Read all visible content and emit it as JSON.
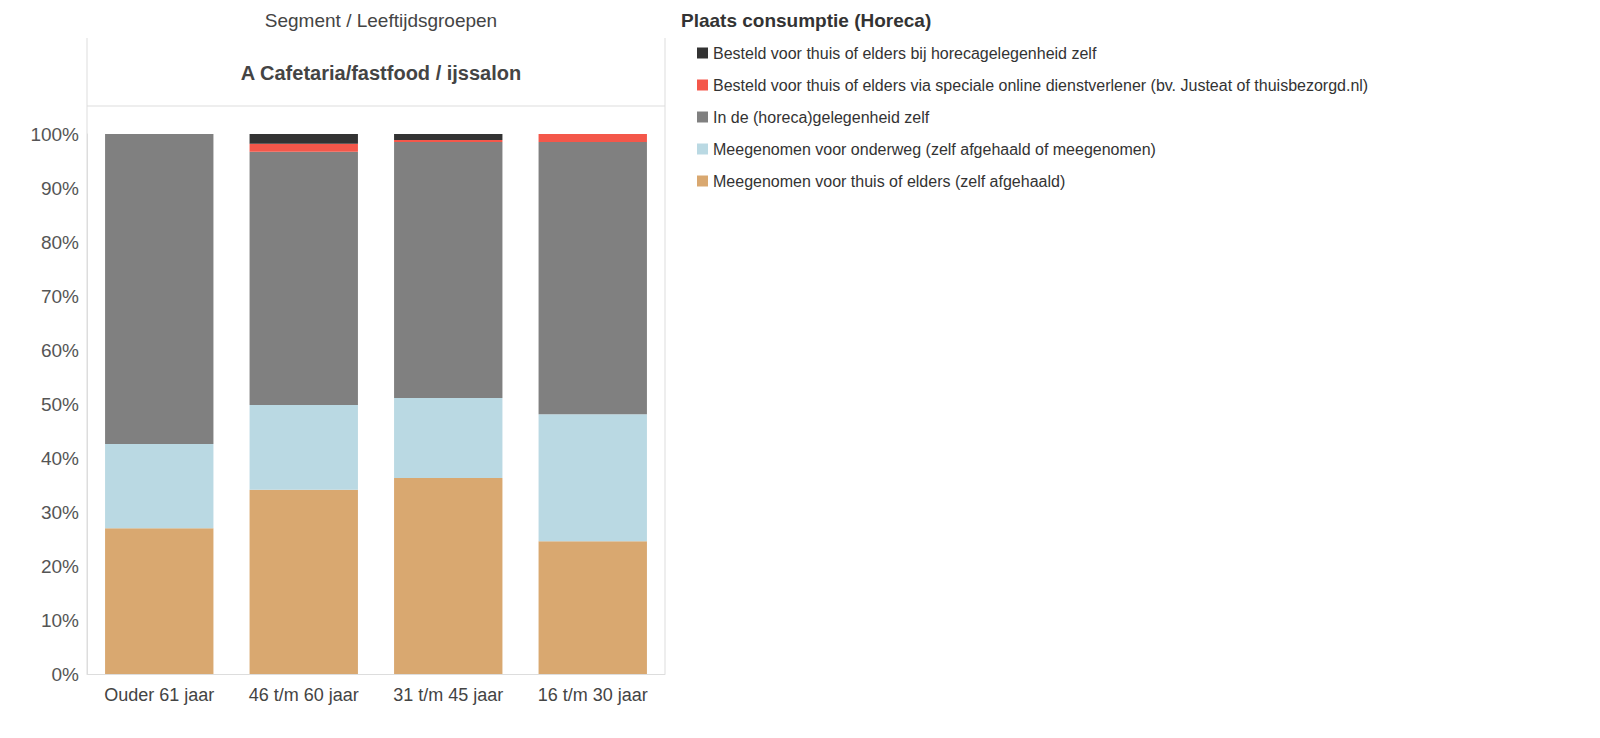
{
  "chart_data": {
    "type": "bar",
    "x_label": "Segment / Leeftijdsgroepen",
    "title": "A Cafetaria/fastfood / ijssalon",
    "legend_title": "Plaats consumptie (Horeca)",
    "categories": [
      "Ouder 61 jaar",
      "46 t/m 60 jaar",
      "31 t/m 45 jaar",
      "16 t/m 30 jaar"
    ],
    "series": [
      {
        "name": "Besteld voor thuis of elders bij horecagelegenheid zelf",
        "color": "#333333",
        "values": [
          0,
          1.8,
          1.1,
          0
        ]
      },
      {
        "name": "Besteld voor thuis of elders via speciale online dienstverlener (bv. Justeat of thuisbezorgd.nl)",
        "color": "#f4574a",
        "values": [
          0,
          1.5,
          0.4,
          1.5
        ]
      },
      {
        "name": "In de (horeca)gelegenheid zelf",
        "color": "#808080",
        "values": [
          57.4,
          46.9,
          47.4,
          50.4
        ]
      },
      {
        "name": "Meegenomen voor onderweg (zelf afgehaald of meegenomen)",
        "color": "#bad9e3",
        "values": [
          15.6,
          15.7,
          14.8,
          23.5
        ]
      },
      {
        "name": "Meegenomen voor thuis of elders (zelf afgehaald)",
        "color": "#d9a870",
        "values": [
          27,
          34.1,
          36.3,
          24.6
        ]
      }
    ],
    "stacked": true,
    "ylim": [
      0,
      100
    ],
    "yticks": [
      {
        "value": 0,
        "label": "0%"
      },
      {
        "value": 10,
        "label": "10%"
      },
      {
        "value": 20,
        "label": "20%"
      },
      {
        "value": 30,
        "label": "30%"
      },
      {
        "value": 40,
        "label": "40%"
      },
      {
        "value": 50,
        "label": "50%"
      },
      {
        "value": 60,
        "label": "60%"
      },
      {
        "value": 70,
        "label": "70%"
      },
      {
        "value": 80,
        "label": "80%"
      },
      {
        "value": 90,
        "label": "90%"
      },
      {
        "value": 100,
        "label": "100%"
      }
    ],
    "grid": false,
    "legend": "right"
  }
}
